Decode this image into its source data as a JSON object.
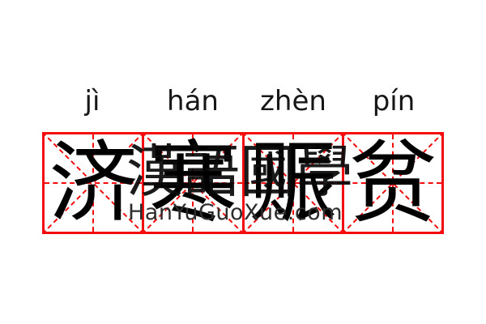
{
  "word": {
    "pinyin": [
      "jì",
      "hán",
      "zhèn",
      "pín"
    ],
    "characters": [
      "济",
      "寒",
      "赈",
      "贫"
    ]
  },
  "watermark": {
    "hanzi": "漢語國學",
    "site": "HanYuGuoXue.com"
  },
  "colors": {
    "grid_red": "#f30d0d",
    "character_black": "#000000",
    "pinyin_black": "#161616",
    "watermark_gray": "#2d2d2d",
    "background": "#ffffff"
  }
}
